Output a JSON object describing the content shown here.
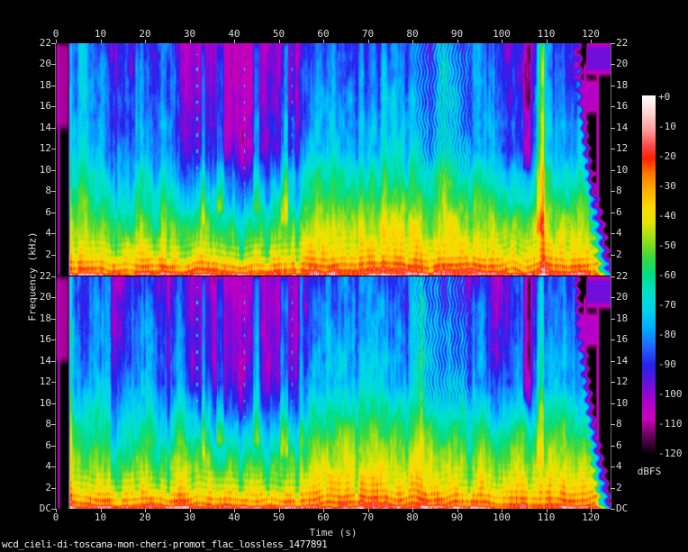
{
  "figure": {
    "filename": "wcd_cieli-di-toscana-mon-cheri-promot_flac_lossless_1477891",
    "background": "#000000",
    "text_color": "#dcdcdc",
    "tick_color": "#c0c0c0",
    "axis_line_color": "#6e6e6e"
  },
  "axes": {
    "x": {
      "label": "Time (s)",
      "ticks": [
        0,
        10,
        20,
        30,
        40,
        50,
        60,
        70,
        80,
        90,
        100,
        110,
        120
      ]
    },
    "y": {
      "label": "Frequency (kHz)",
      "ticks_channel_top": [
        "22",
        "20",
        "18",
        "16",
        "14",
        "12",
        "10",
        "8",
        "6",
        "4",
        "2"
      ],
      "ticks_channel_bottom": [
        "22",
        "20",
        "18",
        "16",
        "14",
        "12",
        "10",
        "8",
        "6",
        "4",
        "2",
        "DC"
      ]
    }
  },
  "colorbar": {
    "title": "dBFS",
    "ticks": [
      "+0",
      "-10",
      "-20",
      "-30",
      "-40",
      "-50",
      "-60",
      "-70",
      "-80",
      "-90",
      "-100",
      "-110",
      "-120"
    ],
    "range_db": [
      -120,
      0
    ]
  },
  "chart_data": {
    "type": "heatmap",
    "subtype": "stereo-audio-spectrogram",
    "channels": 2,
    "time_range_s": [
      0,
      124.4
    ],
    "freq_range_khz": [
      0,
      22
    ],
    "level_range_dbfs": [
      -120,
      0
    ],
    "sections": [
      {
        "t": [
          0,
          2.8
        ],
        "desc": "digital silence (black); faint violet click near 0.5 s"
      },
      {
        "t": [
          2.8,
          27
        ],
        "desc": "intro: red/orange lows, yellow 1-4 kHz, green-cyan mids, cyan-blue highs"
      },
      {
        "t": [
          27,
          56
        ],
        "desc": "quiet highs: magenta/violet above ~12 kHz, cyan transient streaks, dotted columns"
      },
      {
        "t": [
          56,
          95
        ],
        "desc": "full mix: yellow to ~5 kHz, thick red bass, vibrato ripples 80-93 s in highs"
      },
      {
        "t": [
          95,
          107
        ],
        "desc": "slightly darker highs; violet column near 105.5 s"
      },
      {
        "t": [
          107,
          116
        ],
        "desc": "bright climax column near 108.5 s, active to ~116 s"
      },
      {
        "t": [
          116,
          124.4
        ],
        "desc": "fade-out: scalloped cyan decay wedge, magenta haze bands, near-black tail"
      }
    ],
    "palette_dbfs_stops": [
      [
        0,
        "#ffffff"
      ],
      [
        -6,
        "#ffd2d2"
      ],
      [
        -12,
        "#ff9494"
      ],
      [
        -17,
        "#ff4444"
      ],
      [
        -21,
        "#ff2200"
      ],
      [
        -26,
        "#ff7700"
      ],
      [
        -31,
        "#ffaa00"
      ],
      [
        -37,
        "#ffd800"
      ],
      [
        -42,
        "#e8e400"
      ],
      [
        -48,
        "#9ade1a"
      ],
      [
        -54,
        "#3cd83c"
      ],
      [
        -60,
        "#00dd88"
      ],
      [
        -66,
        "#00e2c8"
      ],
      [
        -72,
        "#00d2ee"
      ],
      [
        -78,
        "#00aaff"
      ],
      [
        -84,
        "#2266ff"
      ],
      [
        -90,
        "#2222ee"
      ],
      [
        -96,
        "#6611dd"
      ],
      [
        -102,
        "#aa00cc"
      ],
      [
        -108,
        "#cc00bb"
      ],
      [
        -113,
        "#770066"
      ],
      [
        -118,
        "#220022"
      ],
      [
        -120,
        "#000000"
      ]
    ],
    "freq_nodes_khz": [
      0,
      2,
      6,
      12,
      22
    ],
    "envelope_keyframes": [
      [
        0,
        [
          -120,
          -120,
          -120,
          -120,
          -120
        ]
      ],
      [
        2.7,
        [
          -120,
          -120,
          -120,
          -120,
          -120
        ]
      ],
      [
        3.1,
        [
          -23,
          -40,
          -56,
          -74,
          -86
        ]
      ],
      [
        10,
        [
          -23,
          -42,
          -58,
          -78,
          -88
        ]
      ],
      [
        14,
        [
          -24,
          -44,
          -62,
          -84,
          -92
        ]
      ],
      [
        18,
        [
          -23,
          -41,
          -58,
          -77,
          -87
        ]
      ],
      [
        26,
        [
          -23,
          -42,
          -60,
          -83,
          -93
        ]
      ],
      [
        29,
        [
          -24,
          -44,
          -64,
          -97,
          -105
        ]
      ],
      [
        40,
        [
          -24,
          -45,
          -66,
          -99,
          -106
        ]
      ],
      [
        48,
        [
          -24,
          -43,
          -64,
          -95,
          -103
        ]
      ],
      [
        55,
        [
          -24,
          -42,
          -60,
          -88,
          -98
        ]
      ],
      [
        58,
        [
          -21,
          -36,
          -50,
          -74,
          -86
        ]
      ],
      [
        70,
        [
          -20,
          -35,
          -48,
          -72,
          -84
        ]
      ],
      [
        80,
        [
          -21,
          -36,
          -50,
          -74,
          -85
        ]
      ],
      [
        88,
        [
          -21,
          -37,
          -52,
          -76,
          -87
        ]
      ],
      [
        95,
        [
          -22,
          -38,
          -54,
          -80,
          -90
        ]
      ],
      [
        104,
        [
          -22,
          -40,
          -56,
          -86,
          -96
        ]
      ],
      [
        106,
        [
          -23,
          -42,
          -60,
          -92,
          -101
        ]
      ],
      [
        108.5,
        [
          -20,
          -35,
          -48,
          -70,
          -82
        ]
      ],
      [
        111,
        [
          -21,
          -38,
          -52,
          -78,
          -88
        ]
      ],
      [
        115.5,
        [
          -20,
          -36,
          -51,
          -76,
          -87
        ]
      ],
      [
        124.5,
        [
          -20,
          -36,
          -51,
          -76,
          -87
        ]
      ]
    ],
    "features": {
      "stripes": {
        "fine_scale": 0.45,
        "fine_amp": 5,
        "coarse_scale": 2.8,
        "coarse_amp": 6,
        "streak_threshold": 0.7,
        "streak_gain": 55,
        "gap_threshold": 0.16,
        "gap_gain": 50
      },
      "texture": {
        "scales": [
          [
            1.4,
            2.4,
            4.5
          ],
          [
            0.4,
            0.8,
            3.2
          ]
        ],
        "dither": 1.6
      },
      "low_bands": {
        "fmax": 4.5,
        "amp": 5,
        "fperiod": 0.62
      },
      "beat_dots": {
        "fmax": 3.2,
        "amp": 6,
        "rate": 12.5
      },
      "dc": {
        "fmax": 0.3,
        "amp": 6
      },
      "vibrato": {
        "t0": 80,
        "t1": 93.5,
        "fmin": 8,
        "amp": 8,
        "tfreq": 8.8,
        "fwob": 2.2
      },
      "fade": {
        "start": 116.2,
        "spread": 5.0,
        "pow": 1.25,
        "ripple": 0.45,
        "rippleF": 2.6,
        "rate": 24
      },
      "dots": {
        "times": [
          31.6,
          42.2,
          52.9
        ],
        "f0": 7,
        "f1": 21,
        "step": 1.55,
        "level": -68
      },
      "bursts": [
        {
          "type": "floor",
          "t0": 0.35,
          "t1": 0.8,
          "f0": 0,
          "f1": 22,
          "level": -103
        },
        {
          "type": "floor",
          "t0": 0.0,
          "t1": 2.6,
          "f0": 14,
          "f1": 22,
          "level": -110
        },
        {
          "type": "boost",
          "t0": 2.85,
          "t1": 3.5,
          "f0": 0,
          "f1": 22,
          "amp": 10
        },
        {
          "type": "cut",
          "t0": 12.2,
          "t1": 13.6,
          "f0": 2,
          "f1": 22,
          "amp": 7
        },
        {
          "type": "cut",
          "t0": 21.5,
          "t1": 23.5,
          "f0": 2,
          "f1": 22,
          "amp": 5
        },
        {
          "type": "cut",
          "t0": 24.8,
          "t1": 25.6,
          "f0": 1,
          "f1": 22,
          "amp": 7
        },
        {
          "type": "boost",
          "t0": 32.6,
          "t1": 33.4,
          "f0": 5,
          "f1": 22,
          "amp": 13
        },
        {
          "type": "boost",
          "t0": 36.0,
          "t1": 37.6,
          "f0": 6,
          "f1": 22,
          "amp": 16
        },
        {
          "type": "cut",
          "t0": 41.0,
          "t1": 42.0,
          "f0": 1,
          "f1": 14,
          "amp": 8
        },
        {
          "type": "boost",
          "t0": 44.2,
          "t1": 45.6,
          "f0": 6,
          "f1": 22,
          "amp": 16
        },
        {
          "type": "cut",
          "t0": 47.0,
          "t1": 48.0,
          "f0": 1,
          "f1": 14,
          "amp": 7
        },
        {
          "type": "boost",
          "t0": 50.3,
          "t1": 52.0,
          "f0": 5,
          "f1": 22,
          "amp": 15
        },
        {
          "type": "cut",
          "t0": 53.5,
          "t1": 54.6,
          "f0": 0.5,
          "f1": 22,
          "amp": 9
        },
        {
          "type": "cut",
          "t0": 67.0,
          "t1": 67.8,
          "f0": 1,
          "f1": 22,
          "amp": 7
        },
        {
          "type": "cut",
          "t0": 78.2,
          "t1": 79.0,
          "f0": 1,
          "f1": 22,
          "amp": 7
        },
        {
          "type": "cut",
          "t0": 92.3,
          "t1": 93.4,
          "f0": 1,
          "f1": 22,
          "amp": 8
        },
        {
          "type": "cut",
          "t0": 104.8,
          "t1": 106.4,
          "f0": 10,
          "f1": 22,
          "amp": 15
        },
        {
          "type": "boost",
          "t0": 107.8,
          "t1": 109.4,
          "f0": 4,
          "f1": 22,
          "amp": 13
        },
        {
          "type": "floor",
          "t0": 118.3,
          "t1": 119.0,
          "f0": 1,
          "f1": 20,
          "level": -104
        },
        {
          "type": "floor",
          "t0": 121.2,
          "t1": 121.8,
          "f0": 0,
          "f1": 22,
          "level": -106
        },
        {
          "type": "floor",
          "t0": 115.5,
          "t1": 121.5,
          "f0": 15.5,
          "f1": 18.5,
          "level": -104
        },
        {
          "type": "floor",
          "t0": 119.0,
          "t1": 124.4,
          "f0": 19.2,
          "f1": 22,
          "level": -97
        }
      ]
    }
  }
}
